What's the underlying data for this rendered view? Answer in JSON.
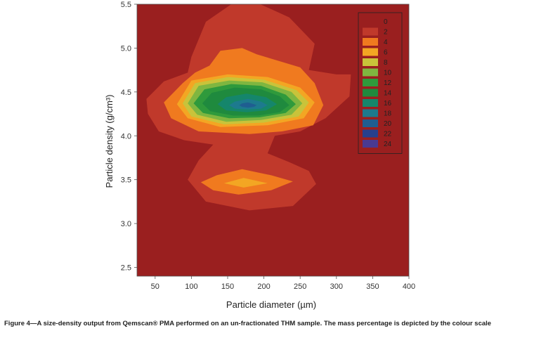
{
  "chart_data": {
    "type": "heatmap",
    "subtype": "filled-contour",
    "xlabel": "Particle diameter (µm)",
    "ylabel": "Particle density (g/cm³)",
    "xlim": [
      25,
      400
    ],
    "ylim": [
      2.4,
      5.5
    ],
    "x_ticks": [
      "50",
      "100",
      "150",
      "200",
      "250",
      "300",
      "350",
      "400"
    ],
    "y_ticks": [
      "2.5",
      "3.0",
      "3.5",
      "4.0",
      "4.5",
      "5.0",
      "5.5"
    ],
    "x_tick_values": [
      50,
      100,
      150,
      200,
      250,
      300,
      350,
      400
    ],
    "y_tick_values": [
      2.5,
      3.0,
      3.5,
      4.0,
      4.5,
      5.0,
      5.5
    ],
    "legend": {
      "placement": "top-right",
      "levels": [
        "0",
        "2",
        "4",
        "6",
        "8",
        "10",
        "12",
        "14",
        "16",
        "18",
        "20",
        "22",
        "24"
      ],
      "colors": [
        "#9a1f1f",
        "#c0392b",
        "#f07a1f",
        "#f3a623",
        "#c9c33a",
        "#7fb640",
        "#2f9a3c",
        "#1f8a3e",
        "#15866b",
        "#1d7a8e",
        "#1f5e91",
        "#27408e",
        "#4a3a91"
      ]
    },
    "peaks": [
      {
        "x": 175,
        "y": 4.35,
        "value": 20
      },
      {
        "x": 175,
        "y": 3.45,
        "value": 6
      }
    ],
    "contours": [
      {
        "level": 2,
        "points": [
          [
            100,
            4.9
          ],
          [
            120,
            5.3
          ],
          [
            155,
            5.5
          ],
          [
            195,
            5.5
          ],
          [
            235,
            5.35
          ],
          [
            270,
            5.05
          ],
          [
            262,
            4.75
          ],
          [
            300,
            4.7
          ],
          [
            320,
            4.7
          ],
          [
            318,
            4.45
          ],
          [
            285,
            4.2
          ],
          [
            250,
            4.05
          ],
          [
            215,
            4.0
          ],
          [
            205,
            3.8
          ],
          [
            235,
            3.7
          ],
          [
            262,
            3.6
          ],
          [
            272,
            3.45
          ],
          [
            240,
            3.2
          ],
          [
            180,
            3.15
          ],
          [
            120,
            3.25
          ],
          [
            95,
            3.5
          ],
          [
            110,
            3.72
          ],
          [
            130,
            3.9
          ],
          [
            90,
            3.95
          ],
          [
            55,
            4.05
          ],
          [
            40,
            4.25
          ],
          [
            38,
            4.42
          ],
          [
            62,
            4.62
          ],
          [
            95,
            4.72
          ]
        ]
      },
      {
        "level": 4,
        "points": [
          [
            125,
            4.8
          ],
          [
            140,
            4.97
          ],
          [
            170,
            5.0
          ],
          [
            190,
            4.93
          ],
          [
            250,
            4.78
          ],
          [
            270,
            4.6
          ],
          [
            282,
            4.35
          ],
          [
            268,
            4.12
          ],
          [
            225,
            4.05
          ],
          [
            180,
            4.02
          ],
          [
            110,
            4.05
          ],
          [
            72,
            4.2
          ],
          [
            62,
            4.38
          ],
          [
            88,
            4.6
          ],
          [
            105,
            4.72
          ]
        ]
      },
      {
        "level": 4,
        "points": [
          [
            113,
            3.47
          ],
          [
            135,
            3.55
          ],
          [
            170,
            3.62
          ],
          [
            210,
            3.55
          ],
          [
            240,
            3.48
          ],
          [
            210,
            3.38
          ],
          [
            165,
            3.33
          ],
          [
            130,
            3.38
          ]
        ]
      },
      {
        "level": 6,
        "points": [
          [
            100,
            4.63
          ],
          [
            150,
            4.7
          ],
          [
            205,
            4.67
          ],
          [
            250,
            4.55
          ],
          [
            270,
            4.38
          ],
          [
            255,
            4.2
          ],
          [
            205,
            4.12
          ],
          [
            140,
            4.1
          ],
          [
            95,
            4.2
          ],
          [
            80,
            4.36
          ]
        ]
      },
      {
        "level": 6,
        "points": [
          [
            145,
            3.46
          ],
          [
            172,
            3.52
          ],
          [
            205,
            3.46
          ],
          [
            172,
            3.41
          ]
        ]
      },
      {
        "level": 8,
        "points": [
          [
            105,
            4.6
          ],
          [
            150,
            4.67
          ],
          [
            200,
            4.64
          ],
          [
            245,
            4.52
          ],
          [
            262,
            4.38
          ],
          [
            248,
            4.22
          ],
          [
            200,
            4.15
          ],
          [
            145,
            4.13
          ],
          [
            100,
            4.22
          ],
          [
            88,
            4.37
          ]
        ]
      },
      {
        "level": 10,
        "points": [
          [
            110,
            4.57
          ],
          [
            152,
            4.63
          ],
          [
            198,
            4.61
          ],
          [
            238,
            4.5
          ],
          [
            253,
            4.37
          ],
          [
            238,
            4.24
          ],
          [
            196,
            4.18
          ],
          [
            148,
            4.16
          ],
          [
            108,
            4.24
          ],
          [
            95,
            4.37
          ]
        ]
      },
      {
        "level": 12,
        "points": [
          [
            118,
            4.53
          ],
          [
            155,
            4.59
          ],
          [
            196,
            4.57
          ],
          [
            230,
            4.47
          ],
          [
            244,
            4.36
          ],
          [
            230,
            4.26
          ],
          [
            194,
            4.21
          ],
          [
            152,
            4.2
          ],
          [
            116,
            4.26
          ],
          [
            103,
            4.37
          ]
        ]
      },
      {
        "level": 14,
        "points": [
          [
            128,
            4.49
          ],
          [
            160,
            4.55
          ],
          [
            196,
            4.53
          ],
          [
            222,
            4.45
          ],
          [
            235,
            4.35
          ],
          [
            222,
            4.27
          ],
          [
            192,
            4.23
          ],
          [
            158,
            4.23
          ],
          [
            126,
            4.28
          ],
          [
            115,
            4.37
          ]
        ]
      },
      {
        "level": 16,
        "points": [
          [
            148,
            4.44
          ],
          [
            176,
            4.48
          ],
          [
            203,
            4.44
          ],
          [
            218,
            4.36
          ],
          [
            203,
            4.29
          ],
          [
            176,
            4.27
          ],
          [
            148,
            4.29
          ],
          [
            136,
            4.36
          ]
        ]
      },
      {
        "level": 18,
        "points": [
          [
            160,
            4.39
          ],
          [
            178,
            4.42
          ],
          [
            196,
            4.39
          ],
          [
            205,
            4.35
          ],
          [
            196,
            4.31
          ],
          [
            178,
            4.3
          ],
          [
            160,
            4.31
          ],
          [
            152,
            4.35
          ]
        ]
      },
      {
        "level": 20,
        "points": [
          [
            170,
            4.37
          ],
          [
            178,
            4.38
          ],
          [
            186,
            4.36
          ],
          [
            190,
            4.35
          ],
          [
            186,
            4.33
          ],
          [
            178,
            4.32
          ],
          [
            170,
            4.33
          ],
          [
            166,
            4.35
          ]
        ]
      }
    ]
  },
  "caption": "Figure 4—A size-density output from Qemscan® PMA performed on an un-fractionated THM sample. The mass percentage is depicted by the colour scale"
}
